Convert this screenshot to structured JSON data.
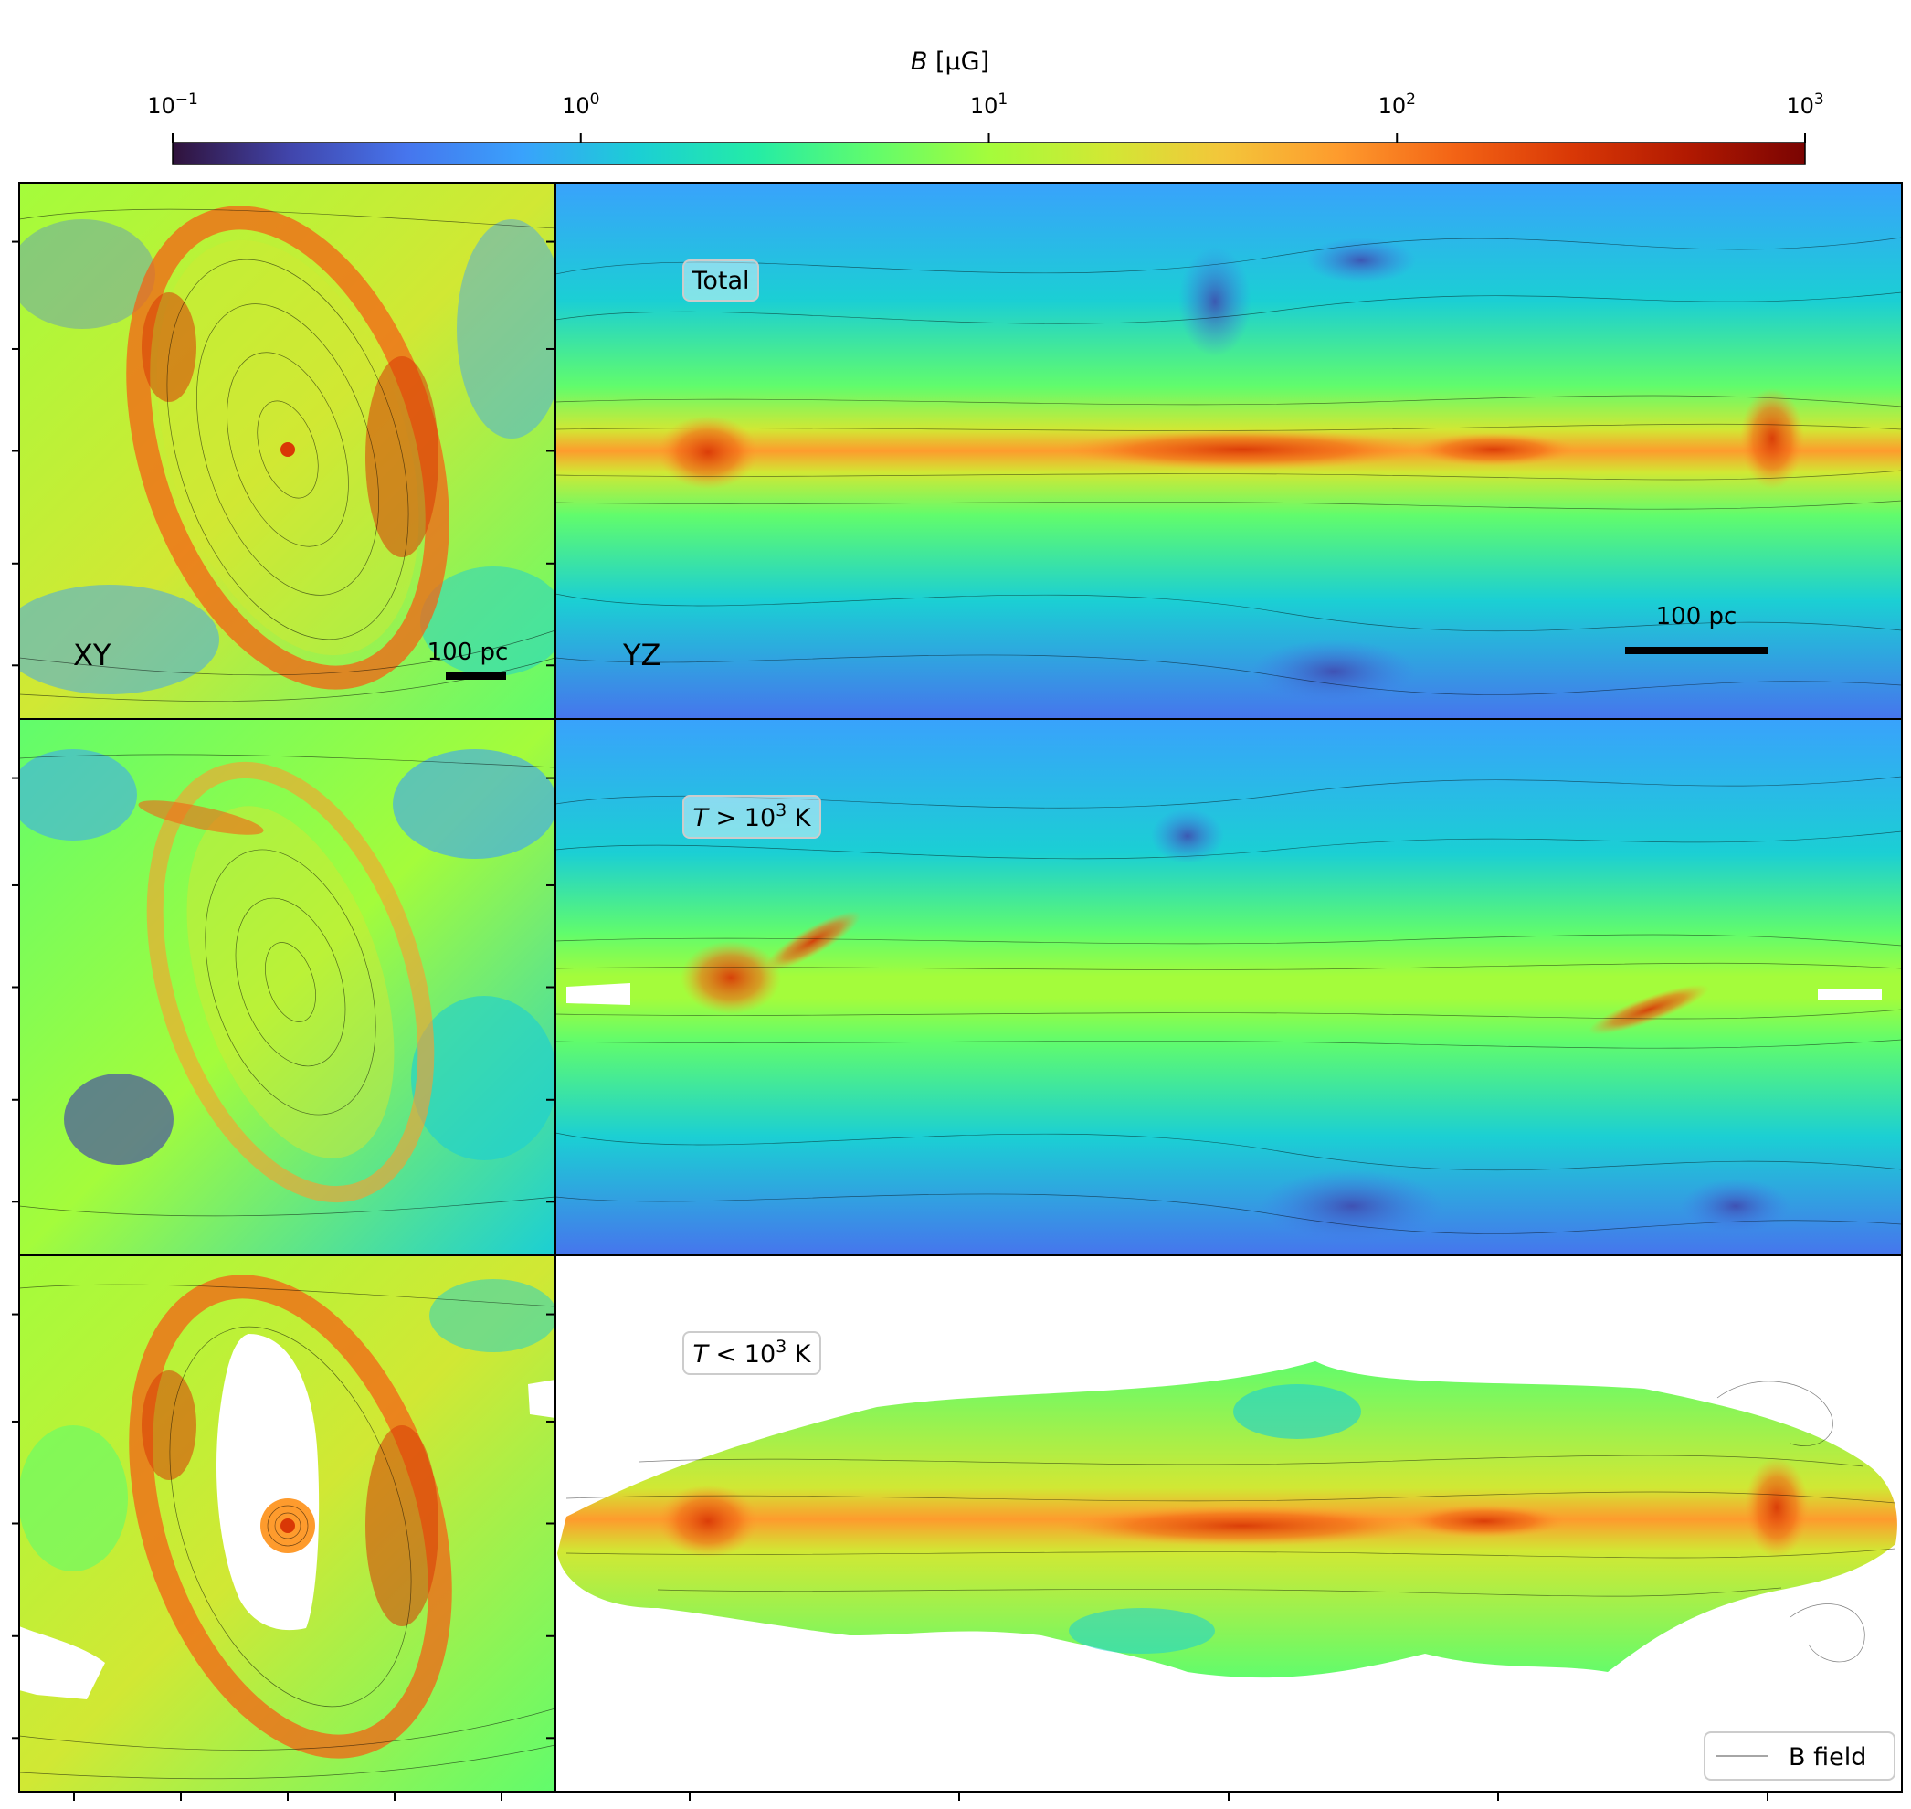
{
  "colorbar": {
    "label_main": "B",
    "label_unit": " [μG]",
    "ticks": [
      {
        "base": "10",
        "exp": "−1",
        "value": 0.1
      },
      {
        "base": "10",
        "exp": "0",
        "value": 1
      },
      {
        "base": "10",
        "exp": "1",
        "value": 10
      },
      {
        "base": "10",
        "exp": "2",
        "value": 100
      },
      {
        "base": "10",
        "exp": "3",
        "value": 1000
      }
    ],
    "colormap": [
      "#30123b",
      "#4145ab",
      "#4675ed",
      "#39a2fc",
      "#1bcfd4",
      "#24eca6",
      "#61fc6c",
      "#a4fc3b",
      "#d1e834",
      "#f3c63a",
      "#fe9b2d",
      "#f36315",
      "#d93806",
      "#b11901",
      "#7a0402"
    ]
  },
  "panels": {
    "row1": {
      "label": "Total",
      "xy_label": "XY",
      "yz_label": "YZ",
      "scalebar_xy": "100 pc",
      "scalebar_yz": "100 pc"
    },
    "row2": {
      "label_prefix": "T",
      "label_op": " > ",
      "label_base": "10",
      "label_exp": "3",
      "label_unit": " K"
    },
    "row3": {
      "label_prefix": "T",
      "label_op": " < ",
      "label_base": "10",
      "label_exp": "3",
      "label_unit": " K"
    }
  },
  "legend": {
    "entry": "B field"
  }
}
